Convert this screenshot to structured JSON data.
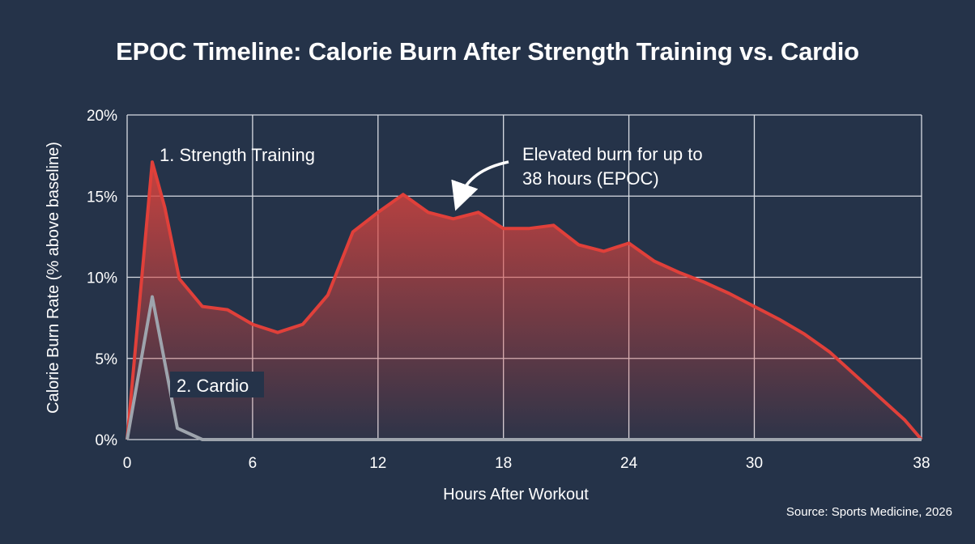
{
  "title": "EPOC Timeline: Calorie Burn After Strength Training vs. Cardio",
  "source": "Source: Sports Medicine, 2026",
  "colors": {
    "background": "#253349",
    "strength": "#e0403a",
    "cardio": "#9ea4ad",
    "grid": "#d8dce3"
  },
  "chart_data": {
    "type": "area",
    "xlabel": "Hours After Workout",
    "ylabel": "Calorie Burn Rate (% above baseline)",
    "xlim": [
      0,
      38
    ],
    "ylim": [
      0,
      20
    ],
    "x_ticks": [
      "0",
      "6",
      "12",
      "18",
      "24",
      "30",
      "38"
    ],
    "y_ticks": [
      "0%",
      "5%",
      "10%",
      "15%",
      "20%"
    ],
    "grid": true,
    "series": [
      {
        "name": "1. Strength Training",
        "x": [
          0,
          1.2,
          1.8,
          2.5,
          3.6,
          4.8,
          6,
          7.2,
          8.4,
          9.6,
          10.8,
          12,
          13.2,
          14.4,
          15.6,
          16.8,
          18,
          19.2,
          20.4,
          21.6,
          22.8,
          24,
          25.2,
          26.4,
          27.6,
          28.8,
          30,
          31.2,
          32.4,
          33.6,
          34.8,
          36,
          37.2,
          38
        ],
        "values": [
          0,
          17.1,
          14.3,
          9.9,
          8.2,
          8.0,
          7.1,
          6.6,
          7.1,
          8.9,
          12.8,
          14.0,
          15.1,
          14.0,
          13.6,
          14.0,
          13.0,
          13.0,
          13.2,
          12.0,
          11.6,
          12.1,
          11.0,
          10.3,
          9.7,
          9.0,
          8.2,
          7.4,
          6.5,
          5.4,
          4.0,
          2.6,
          1.2,
          0
        ]
      },
      {
        "name": "2. Cardio",
        "x": [
          0,
          1.2,
          2.4,
          3.6,
          38
        ],
        "values": [
          0,
          8.8,
          0.7,
          0,
          0
        ]
      }
    ],
    "annotations": [
      {
        "text_line1": "Elevated burn for up to",
        "text_line2": "38 hours (EPOC)"
      }
    ]
  }
}
